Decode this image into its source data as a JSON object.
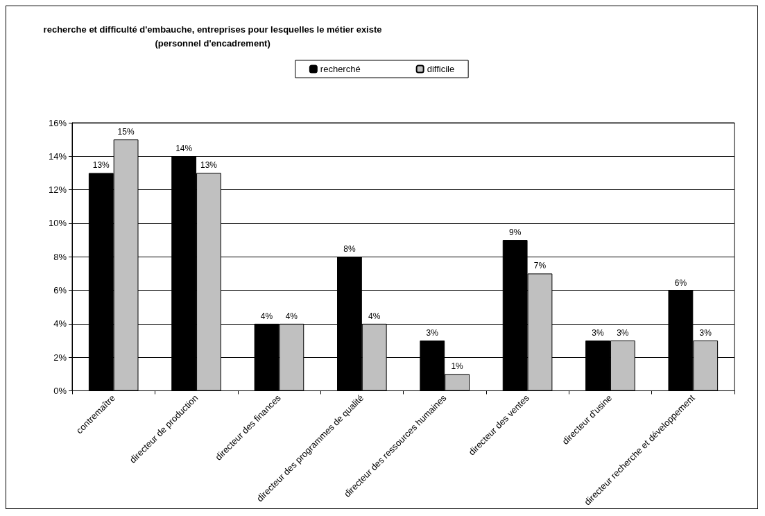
{
  "chart_data": {
    "type": "bar",
    "title": "recherche et difficulté d'embauche, entreprises pour lesquelles le métier existe\n(personnel d'encadrement)",
    "categories": [
      "contremaître",
      "directeur de production",
      "directeur des finances",
      "directeur des programmes de qualité",
      "directeur des ressources humaines",
      "directeur des ventes",
      "directeur d'usine",
      "directeur recherche et développement"
    ],
    "series": [
      {
        "name": "recherché",
        "color": "#000000",
        "values": [
          13,
          14,
          4,
          8,
          3,
          9,
          3,
          6
        ],
        "value_labels": [
          "13%",
          "14%",
          "4%",
          "8%",
          "3%",
          "9%",
          "3%",
          "6%"
        ]
      },
      {
        "name": "difficile",
        "color": "#c0c0c0",
        "values": [
          15,
          13,
          4,
          4,
          1,
          7,
          3,
          3
        ],
        "value_labels": [
          "15%",
          "13%",
          "4%",
          "4%",
          "1%",
          "7%",
          "3%",
          "3%"
        ]
      }
    ],
    "ylim": [
      0,
      16
    ],
    "yticks": [
      {
        "value": 0,
        "label": "0%"
      },
      {
        "value": 2,
        "label": "2%"
      },
      {
        "value": 4,
        "label": "4%"
      },
      {
        "value": 6,
        "label": "6%"
      },
      {
        "value": 8,
        "label": "8%"
      },
      {
        "value": 10,
        "label": "10%"
      },
      {
        "value": 12,
        "label": "12%"
      },
      {
        "value": 14,
        "label": "14%"
      },
      {
        "value": 16,
        "label": "16%"
      }
    ],
    "grid": "y",
    "legend": "top"
  }
}
